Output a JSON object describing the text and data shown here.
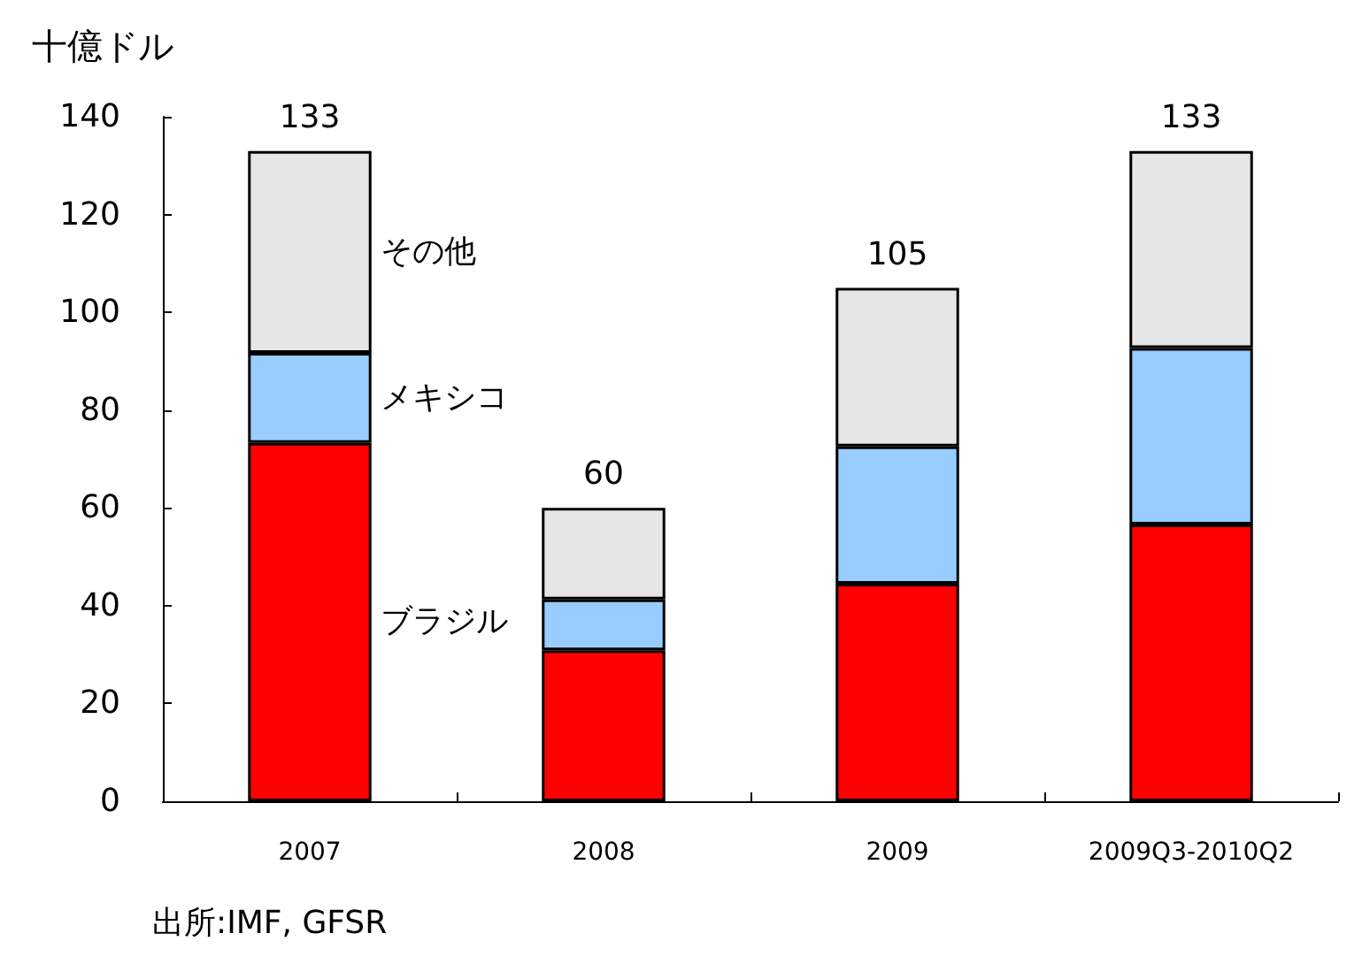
{
  "chart_data": {
    "type": "bar",
    "stacked": true,
    "ylabel": "十億ドル",
    "categories": [
      "2007",
      "2008",
      "2009",
      "2009Q3-2010Q2"
    ],
    "series": [
      {
        "name": "ブラジル",
        "color": "#ff0000",
        "values": [
          73.3,
          30.9,
          44.5,
          56.6
        ]
      },
      {
        "name": "メキシコ",
        "color": "#99ccff",
        "values": [
          18.4,
          10.4,
          28.1,
          36.1
        ]
      },
      {
        "name": "その他",
        "color": "#e6e6e6",
        "values": [
          41.3,
          18.7,
          32.4,
          40.3
        ]
      }
    ],
    "totals": [
      "133",
      "60",
      "105",
      "133"
    ],
    "ylim": [
      0,
      140
    ],
    "yticks": [
      0,
      20,
      40,
      60,
      80,
      100,
      120,
      140
    ],
    "grid": false,
    "legend": false,
    "annotations": [
      "出所:IMF, GFSR"
    ]
  }
}
